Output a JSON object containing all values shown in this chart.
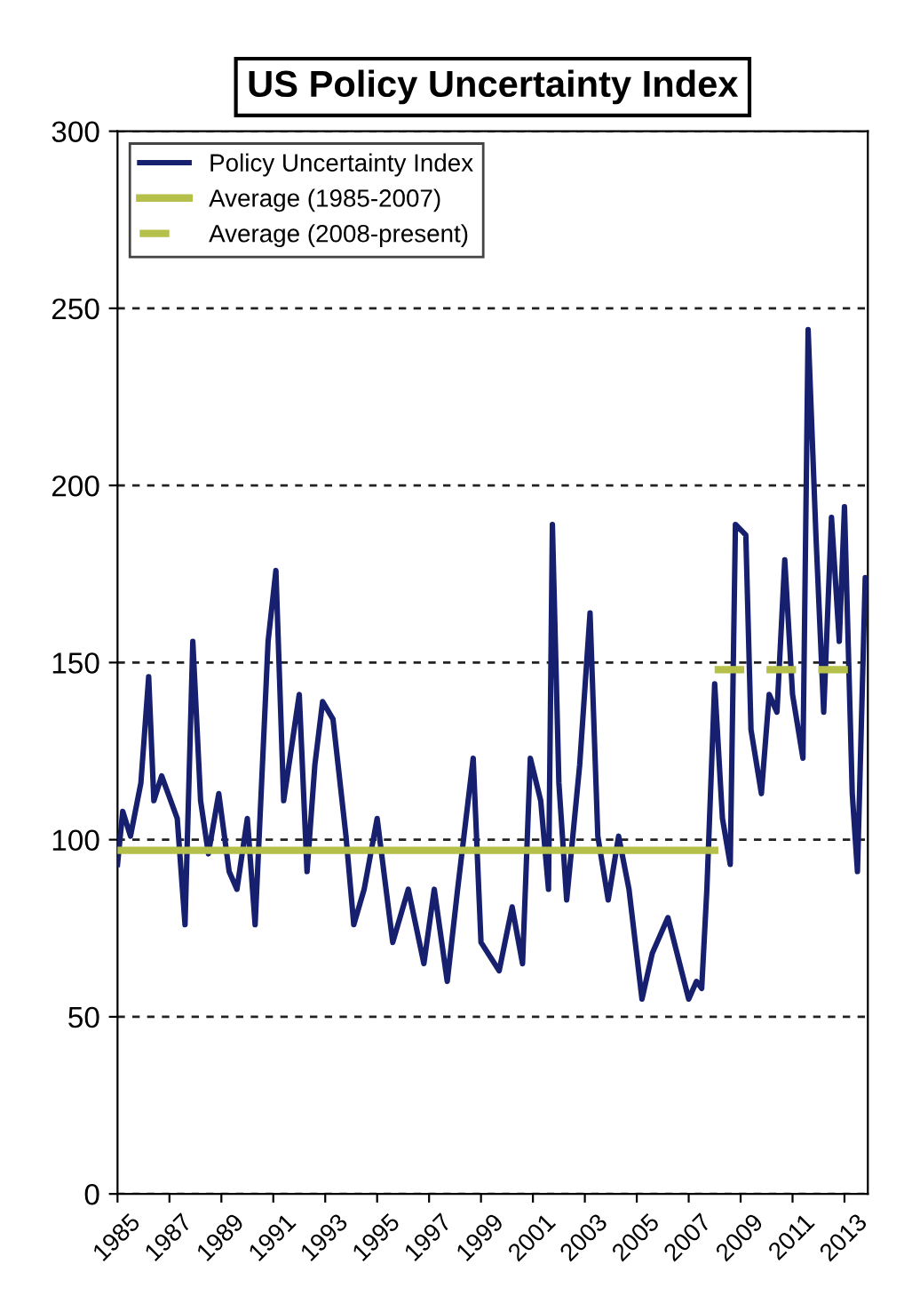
{
  "chart_data": {
    "type": "line",
    "title": "US Policy Uncertainty Index",
    "series": [
      {
        "name": "Policy Uncertainty Index",
        "color": "#17206e",
        "x": [
          1985.0,
          1985.2,
          1985.5,
          1985.9,
          1986.2,
          1986.4,
          1986.7,
          1987.3,
          1987.6,
          1987.9,
          1988.2,
          1988.5,
          1988.9,
          1989.3,
          1989.6,
          1990.0,
          1990.3,
          1990.8,
          1991.1,
          1991.4,
          1992.0,
          1992.3,
          1992.6,
          1992.9,
          1993.3,
          1993.8,
          1994.1,
          1994.5,
          1995.0,
          1995.6,
          1996.2,
          1996.8,
          1997.2,
          1997.7,
          1998.1,
          1998.7,
          1999.0,
          1999.7,
          2000.2,
          2000.6,
          2000.9,
          2001.3,
          2001.6,
          2001.75,
          2002.0,
          2002.3,
          2002.8,
          2003.2,
          2003.5,
          2003.9,
          2004.3,
          2004.7,
          2005.2,
          2005.6,
          2006.2,
          2007.0,
          2007.3,
          2007.5,
          2007.7,
          2008.0,
          2008.3,
          2008.6,
          2008.8,
          2009.2,
          2009.4,
          2009.8,
          2010.1,
          2010.4,
          2010.7,
          2011.0,
          2011.4,
          2011.6,
          2011.9,
          2012.2,
          2012.5,
          2012.8,
          2013.0,
          2013.3,
          2013.5,
          2013.8,
          2013.9
        ],
        "values": [
          93,
          108,
          101,
          116,
          146,
          111,
          118,
          106,
          76,
          156,
          111,
          96,
          113,
          91,
          86,
          106,
          76,
          156,
          176,
          111,
          141,
          91,
          121,
          139,
          134,
          101,
          76,
          86,
          106,
          71,
          86,
          65,
          86,
          60,
          86,
          123,
          71,
          63,
          81,
          65,
          123,
          111,
          86,
          189,
          116,
          83,
          121,
          164,
          101,
          83,
          101,
          86,
          55,
          68,
          78,
          55,
          60,
          58,
          86,
          144,
          106,
          93,
          189,
          186,
          131,
          113,
          141,
          136,
          179,
          141,
          123,
          244,
          186,
          136,
          191,
          156,
          194,
          113,
          91,
          174,
          171
        ]
      },
      {
        "name": "Average (1985-2007)",
        "color": "#b5c04a",
        "x": [
          1985.0,
          2008.0
        ],
        "values": [
          97,
          97
        ],
        "line_style": "solid"
      },
      {
        "name": "Average (2008-present)",
        "color": "#b5c04a",
        "x": [
          2008.0,
          2013.9
        ],
        "values": [
          148,
          148
        ],
        "line_style": "dashed"
      }
    ],
    "xlim": [
      1985,
      2013.9
    ],
    "xticks": [
      1985,
      1987,
      1989,
      1991,
      1993,
      1995,
      1997,
      1999,
      2001,
      2003,
      2005,
      2007,
      2009,
      2011,
      2013
    ],
    "ylim": [
      0,
      300
    ],
    "yticks": [
      0,
      50,
      100,
      150,
      200,
      250,
      300
    ],
    "grid": "y",
    "legend": "top left",
    "marker": "none"
  }
}
